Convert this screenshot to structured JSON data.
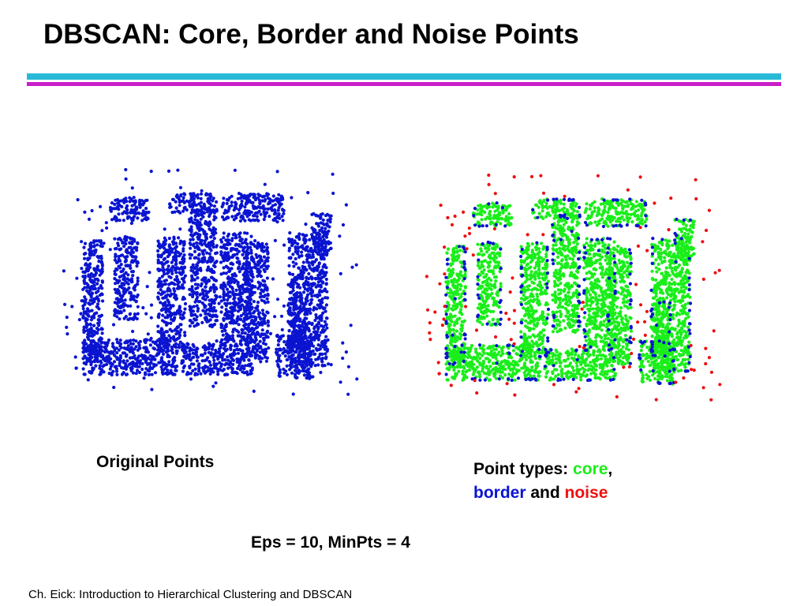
{
  "slide": {
    "title": "DBSCAN: Core, Border and Noise Points",
    "footer": "Ch. Eick: Introduction to Hierarchical Clustering and DBSCAN",
    "params": "Eps = 10, MinPts = 4"
  },
  "colors": {
    "rule_cyan": "#27b9d6",
    "rule_magenta": "#c81ec8",
    "original": "#0a14d0",
    "core": "#1aee1a",
    "border": "#0a14d0",
    "noise": "#ee1010"
  },
  "left_panel": {
    "caption": "Original Points"
  },
  "right_panel": {
    "legend": {
      "prefix": "Point types: ",
      "core": "core",
      "comma": ",",
      "border": "border",
      "and": " and ",
      "noise": "noise"
    }
  }
}
